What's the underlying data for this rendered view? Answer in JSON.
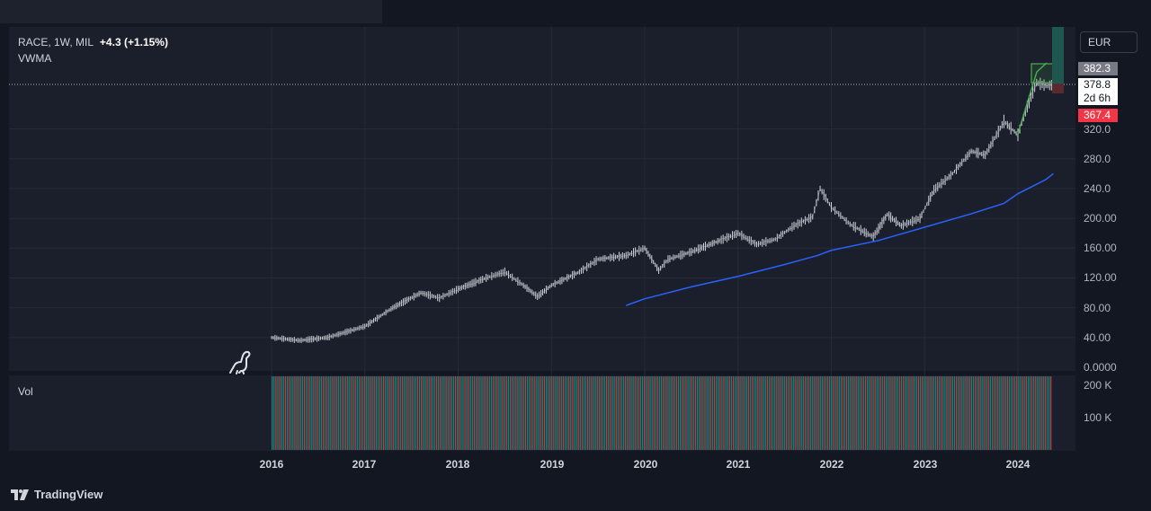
{
  "legend": {
    "symbol_line": "RACE, 1W, MIL",
    "change": "+4.3 (+1.15%)",
    "indicator": "VWMA"
  },
  "volume_label": "Vol",
  "currency_button": "EUR",
  "brand": "TradingView",
  "price_tags": {
    "last": "382.3",
    "close": "378.8",
    "countdown": "2d 6h",
    "low": "367.4"
  },
  "colors": {
    "background": "#131722",
    "price_line": "#d1d4dc",
    "vwma": "#2962ff",
    "vol_up": "#26a69a",
    "vol_down": "#ef5350",
    "tag_last": "#787b86",
    "tag_low": "#f23645",
    "drawing": "#4caf50"
  },
  "chart_data": [
    {
      "type": "line",
      "name": "RACE",
      "x": [
        2016.0,
        2016.3,
        2016.6,
        2017.0,
        2017.3,
        2017.6,
        2017.8,
        2018.0,
        2018.3,
        2018.5,
        2018.7,
        2018.85,
        2019.0,
        2019.3,
        2019.5,
        2019.8,
        2020.0,
        2020.15,
        2020.25,
        2020.5,
        2020.8,
        2021.0,
        2021.2,
        2021.4,
        2021.6,
        2021.8,
        2021.88,
        2022.0,
        2022.2,
        2022.45,
        2022.6,
        2022.75,
        2022.95,
        2023.1,
        2023.3,
        2023.5,
        2023.65,
        2023.85,
        2024.0,
        2024.1,
        2024.2,
        2024.3,
        2024.38
      ],
      "values": [
        40,
        36,
        40,
        55,
        80,
        100,
        93,
        105,
        120,
        128,
        110,
        95,
        110,
        128,
        145,
        150,
        160,
        130,
        145,
        155,
        170,
        180,
        165,
        172,
        190,
        202,
        240,
        215,
        192,
        175,
        205,
        190,
        200,
        238,
        260,
        290,
        285,
        330,
        312,
        350,
        382,
        378,
        378.8
      ],
      "ylim": [
        0,
        420
      ]
    },
    {
      "type": "line",
      "name": "VWMA",
      "x": [
        2019.8,
        2020.0,
        2020.5,
        2021.0,
        2021.5,
        2021.85,
        2022.0,
        2022.5,
        2023.0,
        2023.5,
        2023.85,
        2024.0,
        2024.3,
        2024.38
      ],
      "values": [
        83,
        92,
        108,
        122,
        138,
        150,
        157,
        170,
        188,
        206,
        220,
        233,
        252,
        260
      ]
    },
    {
      "type": "bar",
      "name": "Vol",
      "yticks": [
        "200 K",
        "100 K"
      ]
    }
  ],
  "axes": {
    "y_ticks": [
      "320.0",
      "280.0",
      "240.0",
      "200.00",
      "160.00",
      "120.00",
      "80.00",
      "40.00",
      "0.0000"
    ],
    "x_ticks": [
      "2016",
      "2017",
      "2018",
      "2019",
      "2020",
      "2021",
      "2022",
      "2023",
      "2024"
    ]
  }
}
